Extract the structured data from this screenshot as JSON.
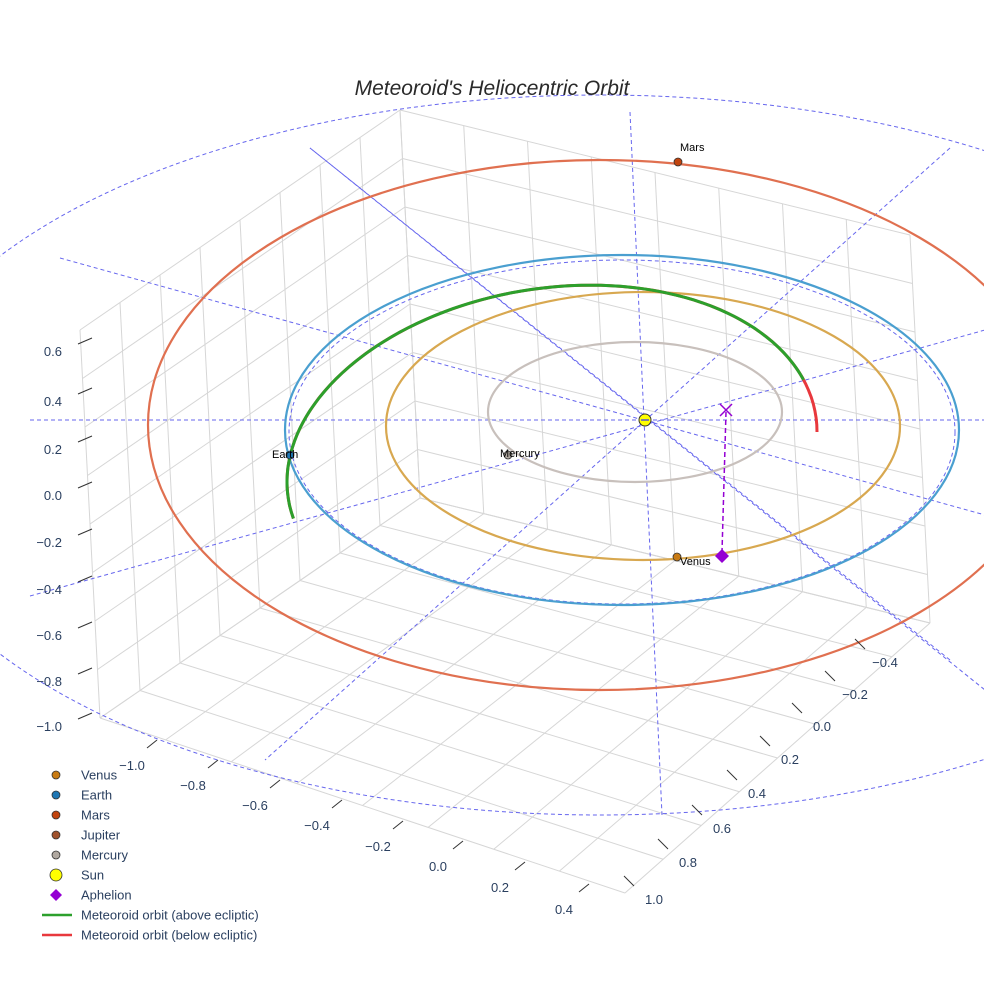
{
  "chart_data": {
    "type": "line",
    "title": "Meteoroid's Heliocentric Orbit",
    "axes": {
      "x": {
        "ticks": [
          "−1.0",
          "−0.8",
          "−0.6",
          "−0.4",
          "−0.2",
          "0.0",
          "0.2",
          "0.4"
        ],
        "range": [
          -1.1,
          0.5
        ]
      },
      "y": {
        "ticks": [
          "−0.4",
          "−0.2",
          "0.0",
          "0.2",
          "0.4",
          "0.6",
          "0.8",
          "1.0"
        ],
        "range": [
          -0.5,
          1.1
        ]
      },
      "z": {
        "ticks": [
          "0.6",
          "0.4",
          "0.2",
          "0.0",
          "−0.2",
          "−0.4",
          "−0.6",
          "−0.8",
          "−1.0"
        ],
        "range": [
          -1.0,
          0.7
        ]
      },
      "grid": true
    },
    "planet_labels": [
      "Mars",
      "Earth",
      "Mercury",
      "Venus"
    ],
    "legend": {
      "placement": "bottom-left",
      "entries": [
        {
          "label": "Venus",
          "color": "#c87a12",
          "marker": "circle"
        },
        {
          "label": "Earth",
          "color": "#1f77b4",
          "marker": "circle"
        },
        {
          "label": "Mars",
          "color": "#c1440e",
          "marker": "circle"
        },
        {
          "label": "Jupiter",
          "color": "#a0522d",
          "marker": "circle"
        },
        {
          "label": "Mercury",
          "color": "#b0a8a0",
          "marker": "circle"
        },
        {
          "label": "Sun",
          "color": "#ffff00",
          "marker": "circle-large"
        },
        {
          "label": "Aphelion",
          "color": "#9400d3",
          "marker": "diamond"
        },
        {
          "label": "Meteoroid orbit (above ecliptic)",
          "color": "#2ca02c",
          "marker": "line"
        },
        {
          "label": "Meteoroid orbit (below ecliptic)",
          "color": "#e8383d",
          "marker": "line"
        }
      ]
    },
    "orbit_colors": {
      "mars": "#e07050",
      "earth": "#4a9fd0",
      "venus": "#d8a850",
      "mercury": "#c8c0bc",
      "ecliptic_guides": "#6666ee"
    }
  }
}
